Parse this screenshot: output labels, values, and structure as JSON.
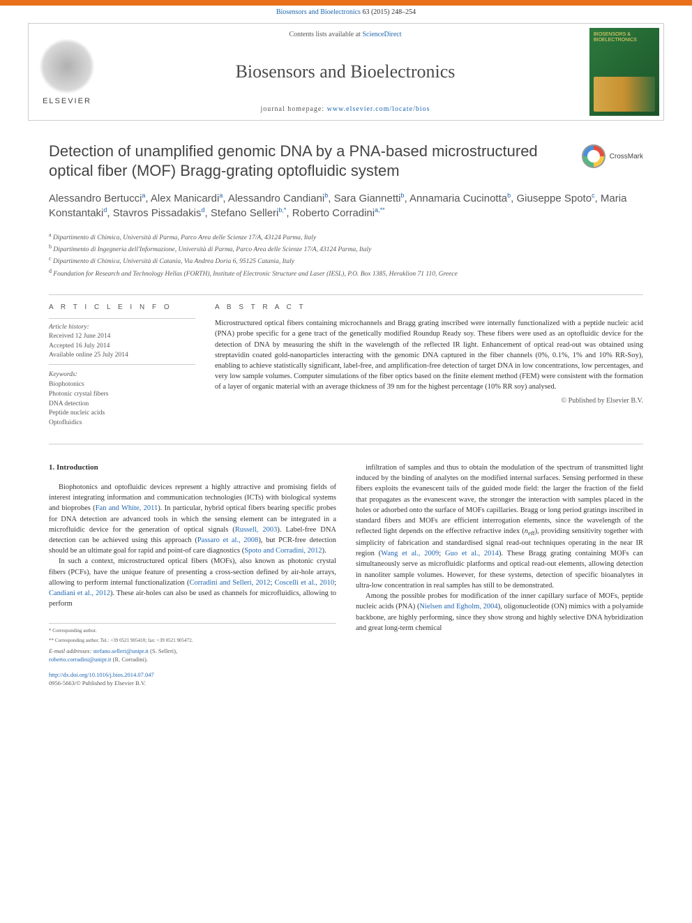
{
  "topbar": {
    "citation": "Biosensors and Bioelectronics 63 (2015) 248–254",
    "link_text": "Biosensors and Bioelectronics"
  },
  "header": {
    "elsevier": "ELSEVIER",
    "contents_prefix": "Contents lists available at ",
    "contents_link": "ScienceDirect",
    "journal_name": "Biosensors and Bioelectronics",
    "homepage_prefix": "journal homepage: ",
    "homepage_link": "www.elsevier.com/locate/bios",
    "cover_title": "BIOSENSORS & BIOELECTRONICS"
  },
  "crossmark": {
    "label": "CrossMark"
  },
  "article": {
    "title": "Detection of unamplified genomic DNA by a PNA-based microstructured optical fiber (MOF) Bragg-grating optofluidic system",
    "authors_html": "Alessandro Bertucci<sup>a</sup>, Alex Manicardi<sup>a</sup>, Alessandro Candiani<sup>b</sup>, Sara Giannetti<sup>b</sup>, Annamaria Cucinotta<sup>b</sup>, Giuseppe Spoto<sup>c</sup>, Maria Konstantaki<sup>d</sup>, Stavros Pissadakis<sup>d</sup>, Stefano Selleri<sup>b,*</sup>, Roberto Corradini<sup>a,**</sup>",
    "affiliations": [
      {
        "sup": "a",
        "text": "Dipartimento di Chimica, Università di Parma, Parco Area delle Scienze 17/A, 43124 Parma, Italy"
      },
      {
        "sup": "b",
        "text": "Dipartimento di Ingegneria dell'Informazione, Università di Parma, Parco Area delle Scienze 17/A, 43124 Parma, Italy"
      },
      {
        "sup": "c",
        "text": "Dipartimento di Chimica, Università di Catania, Via Andrea Doria 6, 95125 Catania, Italy"
      },
      {
        "sup": "d",
        "text": "Foundation for Research and Technology Hellas (FORTH), Institute of Electronic Structure and Laser (IESL), P.O. Box 1385, Heraklion 71 110, Greece"
      }
    ]
  },
  "info": {
    "heading": "A R T I C L E  I N F O",
    "history_label": "Article history:",
    "history": [
      "Received 12 June 2014",
      "Accepted 16 July 2014",
      "Available online 25 July 2014"
    ],
    "keywords_label": "Keywords:",
    "keywords": [
      "Biophotonics",
      "Photonic crystal fibers",
      "DNA detection",
      "Peptide nucleic acids",
      "Optofluidics"
    ]
  },
  "abstract": {
    "heading": "A B S T R A C T",
    "text": "Microstructured optical fibers containing microchannels and Bragg grating inscribed were internally functionalized with a peptide nucleic acid (PNA) probe specific for a gene tract of the genetically modified Roundup Ready soy. These fibers were used as an optofluidic device for the detection of DNA by measuring the shift in the wavelength of the reflected IR light. Enhancement of optical read-out was obtained using streptavidin coated gold-nanoparticles interacting with the genomic DNA captured in the fiber channels (0%, 0.1%, 1% and 10% RR-Soy), enabling to achieve statistically significant, label-free, and amplification-free detection of target DNA in low concentrations, low percentages, and very low sample volumes. Computer simulations of the fiber optics based on the finite element method (FEM) were consistent with the formation of a layer of organic material with an average thickness of 39 nm for the highest percentage (10% RR soy) analysed.",
    "copyright": "© Published by Elsevier B.V."
  },
  "body": {
    "section_heading": "1.  Introduction",
    "col1": [
      "Biophotonics and optofluidic devices represent a highly attractive and promising fields of interest integrating information and communication technologies (ICTs) with biological systems and bioprobes (<span class=\"ref-link\">Fan and White, 2011</span>). In particular, hybrid optical fibers bearing specific probes for DNA detection are advanced tools in which the sensing element can be integrated in a microfluidic device for the generation of optical signals (<span class=\"ref-link\">Russell, 2003</span>). Label-free DNA detection can be achieved using this approach (<span class=\"ref-link\">Passaro et al., 2008</span>), but PCR-free detection should be an ultimate goal for rapid and point-of care diagnostics (<span class=\"ref-link\">Spoto and Corradini, 2012</span>).",
      "In such a context, microstructured optical fibers (MOFs), also known as photonic crystal fibers (PCFs), have the unique feature of presenting a cross-section defined by air-hole arrays, allowing to perform internal functionalization (<span class=\"ref-link\">Corradini and Selleri, 2012</span>; <span class=\"ref-link\">Coscelli et al., 2010</span>; <span class=\"ref-link\">Candiani et al., 2012</span>). These air-holes can also be used as channels for microfluidics, allowing to perform"
    ],
    "col2": [
      "infiltration of samples and thus to obtain the modulation of the spectrum of transmitted light induced by the binding of analytes on the modified internal surfaces. Sensing performed in these fibers exploits the evanescent tails of the guided mode field: the larger the fraction of the field that propagates as the evanescent wave, the stronger the interaction with samples placed in the holes or adsorbed onto the surface of MOFs capillaries. Bragg or long period gratings inscribed in standard fibers and MOFs are efficient interrogation elements, since the wavelength of the reflected light depends on the effective refractive index (<span class=\"ital\">n</span><sub>eff</sub>), providing sensitivity together with simplicity of fabrication and standardised signal read-out techniques operating in the near IR region (<span class=\"ref-link\">Wang et al., 2009</span>; <span class=\"ref-link\">Guo et al., 2014</span>). These Bragg grating containing MOFs can simultaneously serve as microfluidic platforms and optical read-out elements, allowing detection in nanoliter sample volumes. However, for these systems, detection of specific bioanalytes in ultra-low concentration in real samples has still to be demonstrated.",
      "Among the possible probes for modification of the inner capillary surface of MOFs, peptide nucleic acids (PNA) (<span class=\"ref-link\">Nielsen and Egholm, 2004</span>), oligonucleotide (ON) mimics with a polyamide backbone, are highly performing, since they show strong and highly selective DNA hybridization and great long-term chemical"
    ]
  },
  "footer": {
    "corr1": "* Corresponding author.",
    "corr2": "** Corresponding author. Tel.: +39 0521 905410; fax: +39 0521 905472.",
    "email_label": "E-mail addresses: ",
    "email1": "stefano.selleri@unipr.it",
    "email1_suffix": " (S. Selleri),",
    "email2": "roberto.corradini@unipr.it",
    "email2_suffix": " (R. Corradini).",
    "doi": "http://dx.doi.org/10.1016/j.bios.2014.07.047",
    "issn": "0956-5663/© Published by Elsevier B.V."
  },
  "colors": {
    "orange": "#e8701a",
    "link": "#2066b0",
    "text": "#333333",
    "grey": "#555555",
    "border": "#cccccc"
  },
  "typography": {
    "title_fontsize": 22,
    "authors_fontsize": 15,
    "body_fontsize": 10.5,
    "small_fontsize": 9.5
  }
}
